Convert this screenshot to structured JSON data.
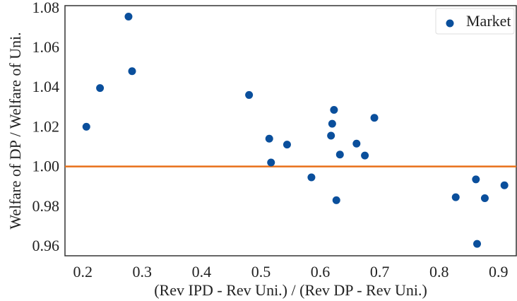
{
  "chart_data": {
    "type": "scatter",
    "title": "",
    "xlabel": "(Rev IPD - Rev Uni.) / (Rev DP - Rev Uni.)",
    "ylabel": "Welfare of DP / Welfare of Uni.",
    "xlim": [
      0.17,
      0.93
    ],
    "ylim": [
      0.955,
      1.081
    ],
    "xticks": [
      0.2,
      0.3,
      0.4,
      0.5,
      0.6,
      0.7,
      0.8,
      0.9
    ],
    "xtick_labels": [
      "0.2",
      "0.3",
      "0.4",
      "0.5",
      "0.6",
      "0.7",
      "0.8",
      "0.9"
    ],
    "yticks": [
      0.96,
      0.98,
      1.0,
      1.02,
      1.04,
      1.06,
      1.08
    ],
    "ytick_labels": [
      "0.96",
      "0.98",
      "1.00",
      "1.02",
      "1.04",
      "1.06",
      "1.08"
    ],
    "grid": false,
    "legend": {
      "position": "top-right",
      "entries": [
        "Market"
      ]
    },
    "series": [
      {
        "name": "Market",
        "color": "#0a4f9c",
        "points": [
          {
            "x": 0.206,
            "y": 1.02
          },
          {
            "x": 0.229,
            "y": 1.0395
          },
          {
            "x": 0.277,
            "y": 1.0755
          },
          {
            "x": 0.283,
            "y": 1.048
          },
          {
            "x": 0.48,
            "y": 1.036
          },
          {
            "x": 0.514,
            "y": 1.014
          },
          {
            "x": 0.517,
            "y": 1.002
          },
          {
            "x": 0.544,
            "y": 1.011
          },
          {
            "x": 0.585,
            "y": 0.9945
          },
          {
            "x": 0.618,
            "y": 1.0155
          },
          {
            "x": 0.62,
            "y": 1.0215
          },
          {
            "x": 0.623,
            "y": 1.0285
          },
          {
            "x": 0.627,
            "y": 0.983
          },
          {
            "x": 0.633,
            "y": 1.006
          },
          {
            "x": 0.661,
            "y": 1.0115
          },
          {
            "x": 0.675,
            "y": 1.0055
          },
          {
            "x": 0.691,
            "y": 1.0245
          },
          {
            "x": 0.828,
            "y": 0.9845
          },
          {
            "x": 0.862,
            "y": 0.9935
          },
          {
            "x": 0.864,
            "y": 0.961
          },
          {
            "x": 0.877,
            "y": 0.984
          },
          {
            "x": 0.91,
            "y": 0.9905
          }
        ]
      }
    ],
    "reference_line": {
      "y": 1.0,
      "color": "#e8711a"
    }
  }
}
